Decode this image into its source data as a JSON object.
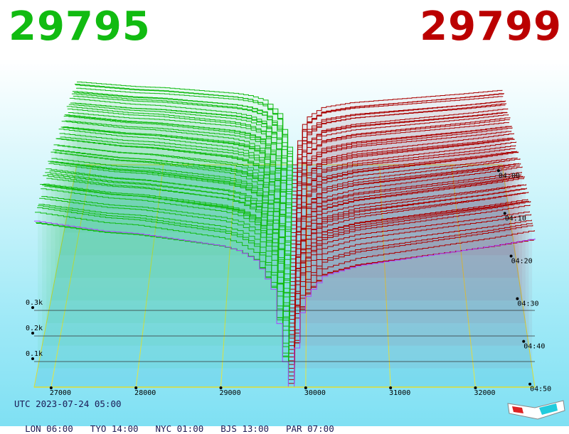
{
  "header": {
    "bid_price": "29795",
    "ask_price": "29799",
    "bid_color": "#11bb11",
    "ask_color": "#bb0000"
  },
  "footer": {
    "utc_label": "UTC 2023-07-24 05:00",
    "zones": [
      "LON 06:00",
      "TYO 14:00",
      "NYC 01:00",
      "BJS 13:00",
      "PAR 07:00"
    ]
  },
  "icons": {
    "stereo_glasses": "3d-glasses-icon"
  },
  "chart_data": {
    "type": "area",
    "title": "",
    "xlabel": "",
    "ylabel": "",
    "x_ticks": [
      27000,
      28000,
      29000,
      30000,
      31000,
      32000
    ],
    "x_tick_labels": [
      "27000",
      "28000",
      "29000",
      "30000",
      "31000",
      "32000"
    ],
    "xlim": [
      26800,
      32700
    ],
    "depth_ticks": [
      0.1,
      0.2,
      0.3
    ],
    "depth_tick_labels": [
      "0.1k",
      "0.2k",
      "0.3k"
    ],
    "time_ticks": [
      "04:00",
      "04:10",
      "04:20",
      "04:30",
      "04:40",
      "04:50"
    ],
    "time_range": [
      "03:50",
      "05:00"
    ],
    "mid_price": 29797,
    "bid_color": "#11bb11",
    "ask_color": "#aa0000",
    "latest_snapshot_color": "#aa44ff",
    "grid": true,
    "series": [
      {
        "side": "bid",
        "x": [
          26800,
          27200,
          27600,
          28000,
          28400,
          28800,
          29000,
          29200,
          29400,
          29600,
          29795
        ],
        "cumulative_depth_k": [
          0.72,
          0.7,
          0.68,
          0.67,
          0.65,
          0.63,
          0.62,
          0.6,
          0.56,
          0.44,
          0.0
        ]
      },
      {
        "side": "ask",
        "x": [
          29799,
          29900,
          30000,
          30200,
          30600,
          31000,
          31400,
          31800,
          32200,
          32700
        ],
        "cumulative_depth_k": [
          0.0,
          0.32,
          0.42,
          0.5,
          0.54,
          0.56,
          0.58,
          0.6,
          0.62,
          0.65
        ]
      }
    ]
  }
}
